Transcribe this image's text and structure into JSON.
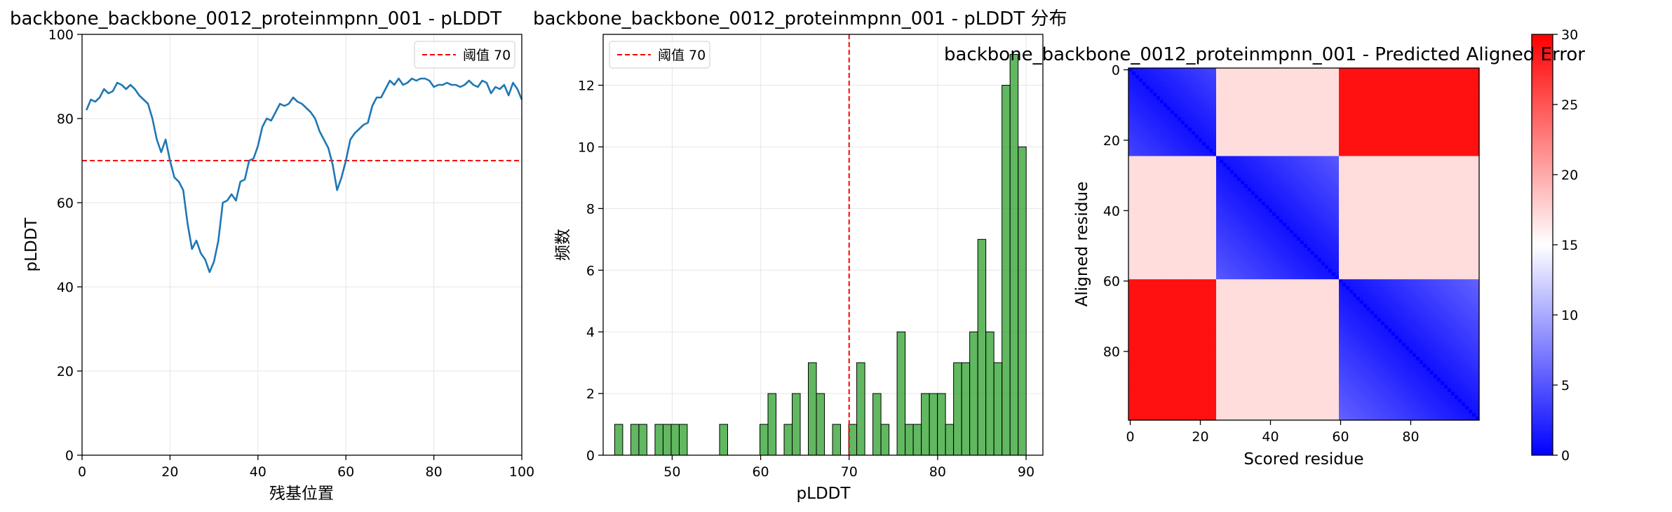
{
  "chart_data": [
    {
      "type": "line",
      "title": "backbone_backbone_0012_proteinmpnn_001 - pLDDT",
      "xlabel": "残基位置",
      "ylabel": "pLDDT",
      "xlim": [
        0,
        100
      ],
      "ylim": [
        0,
        100
      ],
      "xticks": [
        0,
        20,
        40,
        60,
        80,
        100
      ],
      "yticks": [
        0,
        20,
        40,
        60,
        80,
        100
      ],
      "grid": true,
      "legend_position": "top-right",
      "threshold": {
        "value": 70,
        "label": "阈值 70",
        "color": "#ff0000",
        "style": "dashed"
      },
      "series": [
        {
          "color": "#1f77b4",
          "x": [
            1,
            2,
            3,
            4,
            5,
            6,
            7,
            8,
            9,
            10,
            11,
            12,
            13,
            14,
            15,
            16,
            17,
            18,
            19,
            20,
            21,
            22,
            23,
            24,
            25,
            26,
            27,
            28,
            29,
            30,
            31,
            32,
            33,
            34,
            35,
            36,
            37,
            38,
            39,
            40,
            41,
            42,
            43,
            44,
            45,
            46,
            47,
            48,
            49,
            50,
            51,
            52,
            53,
            54,
            55,
            56,
            57,
            58,
            59,
            60,
            61,
            62,
            63,
            64,
            65,
            66,
            67,
            68,
            69,
            70,
            71,
            72,
            73,
            74,
            75,
            76,
            77,
            78,
            79,
            80,
            81,
            82,
            83,
            84,
            85,
            86,
            87,
            88,
            89,
            90,
            91,
            92,
            93,
            94,
            95,
            96,
            97,
            98,
            99,
            100
          ],
          "values": [
            82,
            84.5,
            84,
            85,
            87,
            86,
            86.5,
            88.5,
            88,
            87,
            88,
            87,
            85.5,
            84.5,
            83.5,
            80,
            75,
            72,
            75,
            70,
            66,
            65,
            63,
            55,
            49,
            51,
            48,
            46.5,
            43.5,
            46,
            51,
            60,
            60.5,
            62,
            60.5,
            65,
            65.5,
            70,
            70.5,
            73.5,
            78,
            80,
            79.5,
            81.5,
            83.5,
            83,
            83.5,
            85,
            84,
            83.5,
            82.5,
            81.5,
            80,
            77,
            75,
            73,
            69,
            63,
            66,
            70,
            75,
            76.5,
            77.5,
            78.5,
            79,
            83,
            85,
            85,
            87,
            89,
            88,
            89.5,
            88,
            88.5,
            89.5,
            89,
            89.5,
            89.5,
            89,
            87.5,
            88,
            88,
            88.5,
            88,
            88,
            87.5,
            88,
            89,
            88,
            87.5,
            89,
            88.5,
            86,
            87.5,
            87,
            88,
            85.5,
            88.5,
            87,
            84.5
          ]
        }
      ]
    },
    {
      "type": "bar",
      "title": "backbone_backbone_0012_proteinmpnn_001 - pLDDT 分布",
      "xlabel": "pLDDT",
      "ylabel": "频数",
      "xlim": [
        42.2,
        91.9
      ],
      "ylim": [
        0,
        13.65
      ],
      "xticks": [
        50,
        60,
        70,
        80,
        90
      ],
      "yticks": [
        0,
        2,
        4,
        6,
        8,
        10,
        12
      ],
      "grid": true,
      "legend_position": "top-left",
      "bar_color": "#2ca02c",
      "threshold": {
        "value": 70,
        "label": "阈值 70",
        "color": "#ff0000",
        "style": "dashed"
      },
      "bin_start": 43.5,
      "bin_width": 0.912,
      "values": [
        1,
        0,
        1,
        1,
        0,
        1,
        1,
        1,
        1,
        0,
        0,
        0,
        0,
        1,
        0,
        0,
        0,
        0,
        1,
        2,
        0,
        1,
        2,
        0,
        3,
        2,
        0,
        1,
        0,
        1,
        3,
        0,
        2,
        1,
        0,
        4,
        1,
        1,
        2,
        2,
        2,
        1,
        3,
        3,
        4,
        7,
        4,
        3,
        12,
        13,
        10
      ]
    },
    {
      "type": "heatmap",
      "title": "backbone_backbone_0012_proteinmpnn_001 - Predicted Aligned Error",
      "xlabel": "Scored residue",
      "ylabel": "Aligned residue",
      "size": 100,
      "xticks": [
        0,
        20,
        40,
        60,
        80
      ],
      "yticks": [
        0,
        20,
        40,
        60,
        80
      ],
      "colormap": "bwr",
      "vmin": 0,
      "vmax": 30,
      "colorbar_ticks": [
        0,
        5,
        10,
        15,
        20,
        25,
        30
      ],
      "domains": [
        {
          "start": 0,
          "end": 25
        },
        {
          "start": 25,
          "end": 60
        },
        {
          "start": 60,
          "end": 100
        }
      ],
      "error_levels": {
        "same_domain": 1,
        "adjacent_domain": 17,
        "distant_domain": 29
      }
    }
  ]
}
